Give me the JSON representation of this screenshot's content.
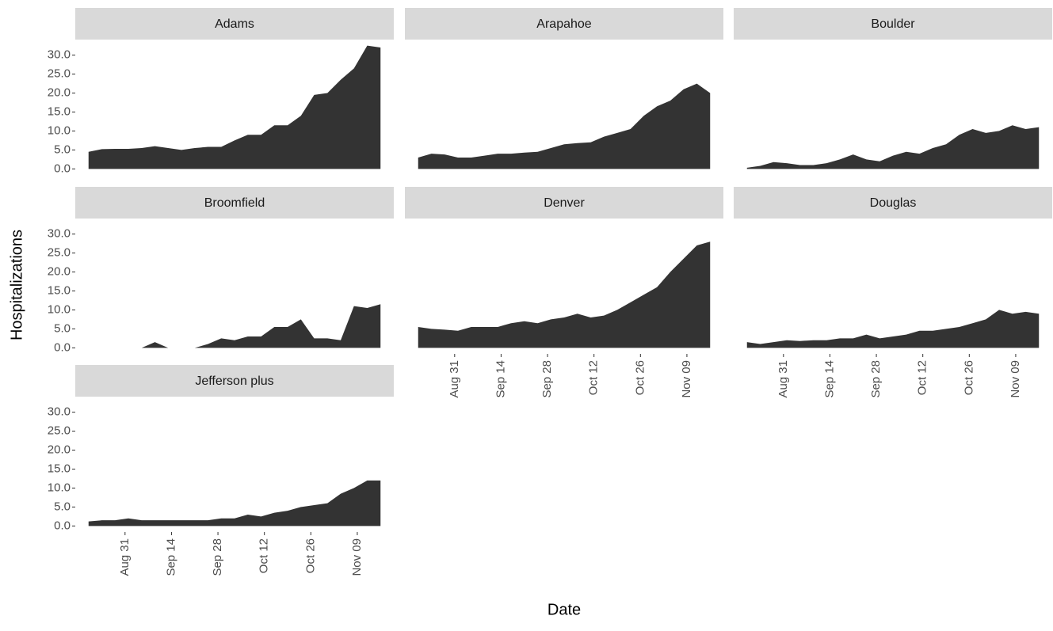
{
  "ylabel": "Hospitalizations",
  "xlabel": "Date",
  "chart_data": [
    {
      "type": "area",
      "title": "Adams",
      "color": "#333333",
      "x": [
        "Aug 20",
        "Aug 24",
        "Aug 28",
        "Sep 01",
        "Sep 05",
        "Sep 09",
        "Sep 13",
        "Sep 17",
        "Sep 21",
        "Sep 25",
        "Sep 29",
        "Oct 03",
        "Oct 07",
        "Oct 11",
        "Oct 15",
        "Oct 19",
        "Oct 23",
        "Oct 27",
        "Oct 31",
        "Nov 04",
        "Nov 08",
        "Nov 12",
        "Nov 16"
      ],
      "values": [
        4.5,
        5.2,
        5.3,
        5.3,
        5.5,
        6.0,
        5.5,
        5.0,
        5.5,
        5.8,
        5.8,
        7.5,
        9.0,
        9.0,
        11.5,
        11.5,
        14.0,
        19.5,
        20.0,
        23.5,
        26.5,
        32.5,
        32.0
      ],
      "xlim": [
        "Aug 16",
        "Nov 20"
      ],
      "ylim": [
        -1.6,
        34.1
      ],
      "yticks": [
        {
          "value": 0,
          "label": "0.0"
        },
        {
          "value": 5,
          "label": "5.0"
        },
        {
          "value": 10,
          "label": "10.0"
        },
        {
          "value": 15,
          "label": "15.0"
        },
        {
          "value": 20,
          "label": "20.0"
        },
        {
          "value": 25,
          "label": "25.0"
        },
        {
          "value": 30,
          "label": "30.0"
        }
      ]
    },
    {
      "type": "area",
      "title": "Arapahoe",
      "color": "#333333",
      "x": [
        "Aug 20",
        "Aug 24",
        "Aug 28",
        "Sep 01",
        "Sep 05",
        "Sep 09",
        "Sep 13",
        "Sep 17",
        "Sep 21",
        "Sep 25",
        "Sep 29",
        "Oct 03",
        "Oct 07",
        "Oct 11",
        "Oct 15",
        "Oct 19",
        "Oct 23",
        "Oct 27",
        "Oct 31",
        "Nov 04",
        "Nov 08",
        "Nov 12",
        "Nov 16"
      ],
      "values": [
        3.0,
        4.0,
        3.8,
        3.0,
        3.0,
        3.5,
        4.0,
        4.0,
        4.3,
        4.5,
        5.5,
        6.5,
        6.8,
        7.0,
        8.5,
        9.5,
        10.5,
        14.0,
        16.5,
        18.0,
        21.0,
        22.5,
        20.0
      ],
      "xlim": [
        "Aug 16",
        "Nov 20"
      ],
      "ylim": [
        -1.6,
        34.1
      ]
    },
    {
      "type": "area",
      "title": "Boulder",
      "color": "#333333",
      "x": [
        "Aug 20",
        "Aug 24",
        "Aug 28",
        "Sep 01",
        "Sep 05",
        "Sep 09",
        "Sep 13",
        "Sep 17",
        "Sep 21",
        "Sep 25",
        "Sep 29",
        "Oct 03",
        "Oct 07",
        "Oct 11",
        "Oct 15",
        "Oct 19",
        "Oct 23",
        "Oct 27",
        "Oct 31",
        "Nov 04",
        "Nov 08",
        "Nov 12",
        "Nov 16"
      ],
      "values": [
        0.3,
        0.8,
        1.8,
        1.5,
        1.0,
        1.0,
        1.5,
        2.5,
        3.8,
        2.5,
        2.0,
        3.5,
        4.5,
        4.0,
        5.5,
        6.5,
        9.0,
        10.5,
        9.5,
        10.0,
        11.5,
        10.5,
        11.0
      ],
      "xlim": [
        "Aug 16",
        "Nov 20"
      ],
      "ylim": [
        -1.6,
        34.1
      ]
    },
    {
      "type": "area",
      "title": "Broomfield",
      "color": "#333333",
      "x": [
        "Aug 20",
        "Aug 24",
        "Aug 28",
        "Sep 01",
        "Sep 05",
        "Sep 09",
        "Sep 13",
        "Sep 17",
        "Sep 21",
        "Sep 25",
        "Sep 29",
        "Oct 03",
        "Oct 07",
        "Oct 11",
        "Oct 15",
        "Oct 19",
        "Oct 23",
        "Oct 27",
        "Oct 31",
        "Nov 04",
        "Nov 08",
        "Nov 12",
        "Nov 16"
      ],
      "values": [
        0,
        0,
        0,
        0,
        0,
        1.5,
        0,
        0,
        0,
        1.0,
        2.5,
        2.0,
        3.0,
        3.0,
        5.5,
        5.5,
        7.5,
        2.5,
        2.5,
        2.0,
        11.0,
        10.5,
        11.5
      ],
      "xlim": [
        "Aug 16",
        "Nov 20"
      ],
      "ylim": [
        -1.6,
        34.1
      ],
      "yticks": [
        {
          "value": 0,
          "label": "0.0"
        },
        {
          "value": 5,
          "label": "5.0"
        },
        {
          "value": 10,
          "label": "10.0"
        },
        {
          "value": 15,
          "label": "15.0"
        },
        {
          "value": 20,
          "label": "20.0"
        },
        {
          "value": 25,
          "label": "25.0"
        },
        {
          "value": 30,
          "label": "30.0"
        }
      ]
    },
    {
      "type": "area",
      "title": "Denver",
      "color": "#333333",
      "x": [
        "Aug 20",
        "Aug 24",
        "Aug 28",
        "Sep 01",
        "Sep 05",
        "Sep 09",
        "Sep 13",
        "Sep 17",
        "Sep 21",
        "Sep 25",
        "Sep 29",
        "Oct 03",
        "Oct 07",
        "Oct 11",
        "Oct 15",
        "Oct 19",
        "Oct 23",
        "Oct 27",
        "Oct 31",
        "Nov 04",
        "Nov 08",
        "Nov 12",
        "Nov 16"
      ],
      "values": [
        5.5,
        5.0,
        4.8,
        4.5,
        5.5,
        5.5,
        5.5,
        6.5,
        7.0,
        6.5,
        7.5,
        8.0,
        9.0,
        8.0,
        8.5,
        10.0,
        12.0,
        14.0,
        16.0,
        20.0,
        23.5,
        27.0,
        28.0
      ],
      "xlim": [
        "Aug 16",
        "Nov 20"
      ],
      "ylim": [
        -1.6,
        34.1
      ],
      "xticks": [
        "Aug 31",
        "Sep 14",
        "Sep 28",
        "Oct 12",
        "Oct 26",
        "Nov 09"
      ]
    },
    {
      "type": "area",
      "title": "Douglas",
      "color": "#333333",
      "x": [
        "Aug 20",
        "Aug 24",
        "Aug 28",
        "Sep 01",
        "Sep 05",
        "Sep 09",
        "Sep 13",
        "Sep 17",
        "Sep 21",
        "Sep 25",
        "Sep 29",
        "Oct 03",
        "Oct 07",
        "Oct 11",
        "Oct 15",
        "Oct 19",
        "Oct 23",
        "Oct 27",
        "Oct 31",
        "Nov 04",
        "Nov 08",
        "Nov 12",
        "Nov 16"
      ],
      "values": [
        1.5,
        1.0,
        1.5,
        2.0,
        1.8,
        2.0,
        2.0,
        2.5,
        2.5,
        3.5,
        2.5,
        3.0,
        3.5,
        4.5,
        4.5,
        5.0,
        5.5,
        6.5,
        7.5,
        10.0,
        9.0,
        9.5,
        9.0
      ],
      "xlim": [
        "Aug 16",
        "Nov 20"
      ],
      "ylim": [
        -1.6,
        34.1
      ],
      "xticks": [
        "Aug 31",
        "Sep 14",
        "Sep 28",
        "Oct 12",
        "Oct 26",
        "Nov 09"
      ]
    },
    {
      "type": "area",
      "title": "Jefferson plus",
      "color": "#333333",
      "x": [
        "Aug 20",
        "Aug 24",
        "Aug 28",
        "Sep 01",
        "Sep 05",
        "Sep 09",
        "Sep 13",
        "Sep 17",
        "Sep 21",
        "Sep 25",
        "Sep 29",
        "Oct 03",
        "Oct 07",
        "Oct 11",
        "Oct 15",
        "Oct 19",
        "Oct 23",
        "Oct 27",
        "Oct 31",
        "Nov 04",
        "Nov 08",
        "Nov 12",
        "Nov 16"
      ],
      "values": [
        1.2,
        1.5,
        1.5,
        2.0,
        1.5,
        1.5,
        1.5,
        1.5,
        1.5,
        1.5,
        2.0,
        2.0,
        3.0,
        2.5,
        3.5,
        4.0,
        5.0,
        5.5,
        6.0,
        8.5,
        10.0,
        12.0,
        12.0
      ],
      "xlim": [
        "Aug 16",
        "Nov 20"
      ],
      "ylim": [
        -1.6,
        34.1
      ],
      "yticks": [
        {
          "value": 0,
          "label": "0.0"
        },
        {
          "value": 5,
          "label": "5.0"
        },
        {
          "value": 10,
          "label": "10.0"
        },
        {
          "value": 15,
          "label": "15.0"
        },
        {
          "value": 20,
          "label": "20.0"
        },
        {
          "value": 25,
          "label": "25.0"
        },
        {
          "value": 30,
          "label": "30.0"
        }
      ],
      "xticks": [
        "Aug 31",
        "Sep 14",
        "Sep 28",
        "Oct 12",
        "Oct 26",
        "Nov 09"
      ]
    }
  ]
}
